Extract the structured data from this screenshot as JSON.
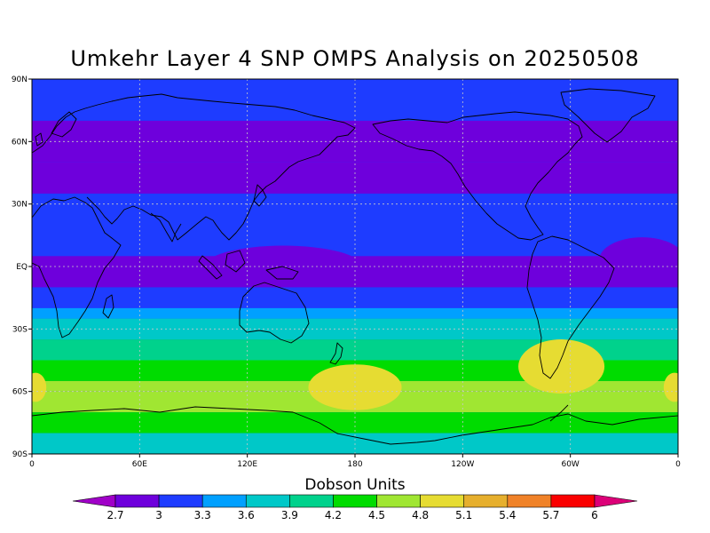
{
  "chart_data": {
    "type": "heatmap",
    "title": "Umkehr Layer 4 SNP OMPS Analysis on 20250508",
    "colorbar_label": "Dobson Units",
    "x_ticks": [
      "0",
      "60E",
      "120E",
      "180",
      "120W",
      "60W",
      "0"
    ],
    "y_ticks": [
      "90N",
      "60N",
      "30N",
      "EQ",
      "30S",
      "60S",
      "90S"
    ],
    "lon_range": [
      0,
      360
    ],
    "lat_range": [
      -90,
      90
    ],
    "grid": "dotted",
    "levels": [
      2.7,
      3,
      3.3,
      3.6,
      3.9,
      4.2,
      4.5,
      4.8,
      5.1,
      5.4,
      5.7,
      6
    ],
    "level_labels": [
      "2.7",
      "3",
      "3.3",
      "3.6",
      "3.9",
      "4.2",
      "4.5",
      "4.8",
      "5.1",
      "5.4",
      "5.7",
      "6"
    ],
    "colors": [
      "#a000c8",
      "#6e00dc",
      "#1e3cff",
      "#00a0ff",
      "#00c8c8",
      "#00d28c",
      "#00dc00",
      "#a0e632",
      "#e6dc32",
      "#e6af2d",
      "#f08228",
      "#fa0000",
      "#dc0078"
    ],
    "zonal_mean_dobson": [
      {
        "lat": 90,
        "value": 3.1
      },
      {
        "lat": 70,
        "value": 2.9
      },
      {
        "lat": 50,
        "value": 2.9
      },
      {
        "lat": 35,
        "value": 3.2
      },
      {
        "lat": 20,
        "value": 3.1
      },
      {
        "lat": 5,
        "value": 2.9
      },
      {
        "lat": -10,
        "value": 3.1
      },
      {
        "lat": -20,
        "value": 3.3
      },
      {
        "lat": -25,
        "value": 3.6
      },
      {
        "lat": -35,
        "value": 3.9
      },
      {
        "lat": -45,
        "value": 4.2
      },
      {
        "lat": -55,
        "value": 4.6
      },
      {
        "lat": -60,
        "value": 4.6
      },
      {
        "lat": -70,
        "value": 4.2
      },
      {
        "lat": -80,
        "value": 3.8
      },
      {
        "lat": -90,
        "value": 3.8
      }
    ],
    "local_maxima": [
      {
        "lon": 180,
        "lat": -58,
        "value": 4.9
      },
      {
        "lon": 295,
        "lat": -48,
        "value": 4.9
      },
      {
        "lon": 2,
        "lat": -58,
        "value": 4.8
      },
      {
        "lon": 358,
        "lat": -58,
        "value": 4.8
      }
    ],
    "local_minima": [
      {
        "lon": 140,
        "lat": 0,
        "value": 2.8
      },
      {
        "lon": 340,
        "lat": 3,
        "value": 2.8
      }
    ]
  }
}
